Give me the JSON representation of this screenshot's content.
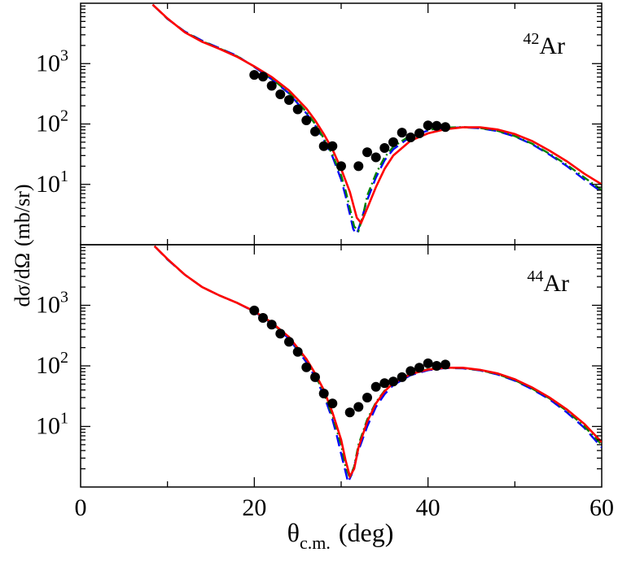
{
  "chart_data": [
    {
      "type": "line",
      "panel": "top",
      "annotation": {
        "mass": "42",
        "element": "Ar"
      },
      "xlim": [
        0,
        60
      ],
      "ylim": [
        1,
        10000
      ],
      "yscale": "log",
      "ytick_values": [
        10,
        100,
        1000
      ],
      "grid": false,
      "legend": "none",
      "series": [
        {
          "style": "solid",
          "color": "#ff0000",
          "x": [
            8.3,
            10,
            12,
            14,
            16,
            18,
            20,
            22,
            24,
            26,
            27,
            28,
            29,
            30,
            31,
            31.8,
            32.3,
            33,
            34,
            35,
            36,
            38,
            40,
            42,
            44,
            46,
            48,
            50,
            52,
            54,
            56,
            58,
            60
          ],
          "y": [
            9500,
            5600,
            3300,
            2300,
            1750,
            1300,
            900,
            600,
            360,
            180,
            115,
            68,
            38,
            18,
            7.5,
            2.8,
            2.3,
            4.0,
            9.0,
            18,
            30,
            53,
            70,
            82,
            88,
            88,
            81,
            68,
            52,
            36,
            24,
            15,
            10
          ]
        },
        {
          "style": "dash",
          "color": "#0000ff",
          "x": [
            8.3,
            10,
            12,
            14,
            16,
            18,
            20,
            22,
            24,
            26,
            27,
            28,
            29,
            30,
            30.5,
            31,
            31.4,
            31.8,
            32.3,
            33,
            34,
            35,
            36,
            38,
            40,
            42,
            44,
            46,
            48,
            50,
            52,
            54,
            56,
            58,
            60
          ],
          "y": [
            9500,
            5500,
            3400,
            2400,
            1800,
            1350,
            880,
            550,
            320,
            150,
            95,
            55,
            29,
            12,
            6.5,
            3.2,
            1.8,
            1.5,
            2.5,
            5.5,
            13,
            25,
            38,
            62,
            78,
            86,
            88,
            85,
            76,
            62,
            46,
            31,
            20,
            12,
            7.5
          ]
        },
        {
          "style": "dash-dot",
          "color": "#008000",
          "x": [
            8.3,
            10,
            12,
            14,
            16,
            18,
            20,
            22,
            24,
            26,
            27,
            28,
            29,
            30,
            30.5,
            31,
            31.5,
            32,
            32.5,
            33,
            34,
            35,
            36,
            38,
            40,
            42,
            44,
            46,
            48,
            50,
            52,
            54,
            56,
            58,
            60
          ],
          "y": [
            9500,
            5550,
            3350,
            2350,
            1780,
            1330,
            890,
            565,
            330,
            158,
            100,
            58,
            31,
            14,
            8,
            4,
            2,
            1.7,
            3,
            6.5,
            15,
            28,
            42,
            65,
            80,
            87,
            89,
            86,
            77,
            63,
            47,
            32,
            21,
            13,
            8
          ]
        }
      ],
      "points": {
        "style": "circle",
        "color": "#000000",
        "x": [
          20,
          21,
          22,
          23,
          24,
          25,
          26,
          27,
          28,
          29,
          30,
          32,
          33,
          34,
          35,
          36,
          37,
          38,
          39,
          40,
          41,
          42
        ],
        "y": [
          650,
          610,
          430,
          310,
          250,
          175,
          115,
          75,
          43,
          43,
          20,
          20,
          34,
          28,
          40,
          50,
          72,
          60,
          70,
          95,
          93,
          89
        ]
      }
    },
    {
      "type": "line",
      "panel": "bottom",
      "annotation": {
        "mass": "44",
        "element": "Ar"
      },
      "xlim": [
        0,
        60
      ],
      "ylim": [
        1,
        10000
      ],
      "yscale": "log",
      "ytick_values": [
        10,
        100,
        1000
      ],
      "xticks": [
        0,
        20,
        40,
        60
      ],
      "xtick_labels": [
        "0",
        "20",
        "40",
        "60"
      ],
      "xlabel": {
        "symbol": "θ",
        "subscript": "c.m.",
        "unit": "(deg)"
      },
      "grid": false,
      "legend": "none",
      "series": [
        {
          "style": "solid",
          "color": "#ff0000",
          "x": [
            8.5,
            10,
            12,
            14,
            16,
            18,
            20,
            22,
            24,
            26,
            27,
            28,
            29,
            30,
            30.5,
            31,
            31.5,
            32,
            33,
            34,
            35,
            36,
            38,
            40,
            42,
            44,
            46,
            48,
            50,
            52,
            54,
            56,
            58,
            60
          ],
          "y": [
            9500,
            5800,
            3200,
            2000,
            1450,
            1100,
            800,
            520,
            300,
            130,
            75,
            40,
            17,
            6,
            2.8,
            1.5,
            2.0,
            4.5,
            12,
            24,
            38,
            52,
            73,
            87,
            93,
            93,
            86,
            75,
            60,
            44,
            30,
            19,
            11,
            5.5
          ]
        },
        {
          "style": "dash",
          "color": "#0000ff",
          "x": [
            8.5,
            10,
            12,
            14,
            16,
            18,
            20,
            22,
            24,
            26,
            27,
            28,
            29,
            29.5,
            30,
            30.5,
            30.8,
            31.2,
            32,
            33,
            34,
            35,
            36,
            38,
            40,
            42,
            44,
            46,
            48,
            50,
            52,
            54,
            56,
            58,
            60
          ],
          "y": [
            9500,
            5700,
            3200,
            2000,
            1450,
            1100,
            780,
            500,
            280,
            115,
            65,
            33,
            13,
            7,
            3.5,
            1.8,
            1.2,
            1.6,
            4,
            10,
            21,
            34,
            48,
            70,
            85,
            92,
            91,
            84,
            72,
            57,
            41,
            28,
            17,
            9.5,
            4.5
          ]
        },
        {
          "style": "dash-dot",
          "color": "#008000",
          "x": [
            8.5,
            10,
            12,
            14,
            16,
            18,
            20,
            22,
            24,
            26,
            27,
            28,
            29,
            30,
            30.5,
            31,
            31.5,
            32,
            33,
            34,
            35,
            36,
            38,
            40,
            42,
            44,
            46,
            48,
            50,
            52,
            54,
            56,
            58,
            60
          ],
          "y": [
            9500,
            5750,
            3200,
            2000,
            1450,
            1100,
            790,
            510,
            290,
            122,
            70,
            36,
            15,
            5,
            2.2,
            1.4,
            2.2,
            5,
            13,
            25,
            39,
            53,
            74,
            88,
            93,
            92,
            85,
            73,
            58,
            42,
            29,
            18,
            10,
            5
          ]
        }
      ],
      "points": {
        "style": "circle",
        "color": "#000000",
        "x": [
          20,
          21,
          22,
          23,
          24,
          25,
          26,
          27,
          28,
          29,
          31,
          32,
          33,
          34,
          35,
          36,
          37,
          38,
          39,
          40,
          41,
          42
        ],
        "y": [
          820,
          620,
          480,
          340,
          250,
          170,
          95,
          65,
          35,
          24,
          17,
          21,
          30,
          45,
          52,
          55,
          65,
          82,
          93,
          110,
          100,
          105
        ]
      }
    }
  ],
  "shared_ylabel": {
    "pre": "dσ/dΩ",
    "unit": "(mb/sr)"
  }
}
